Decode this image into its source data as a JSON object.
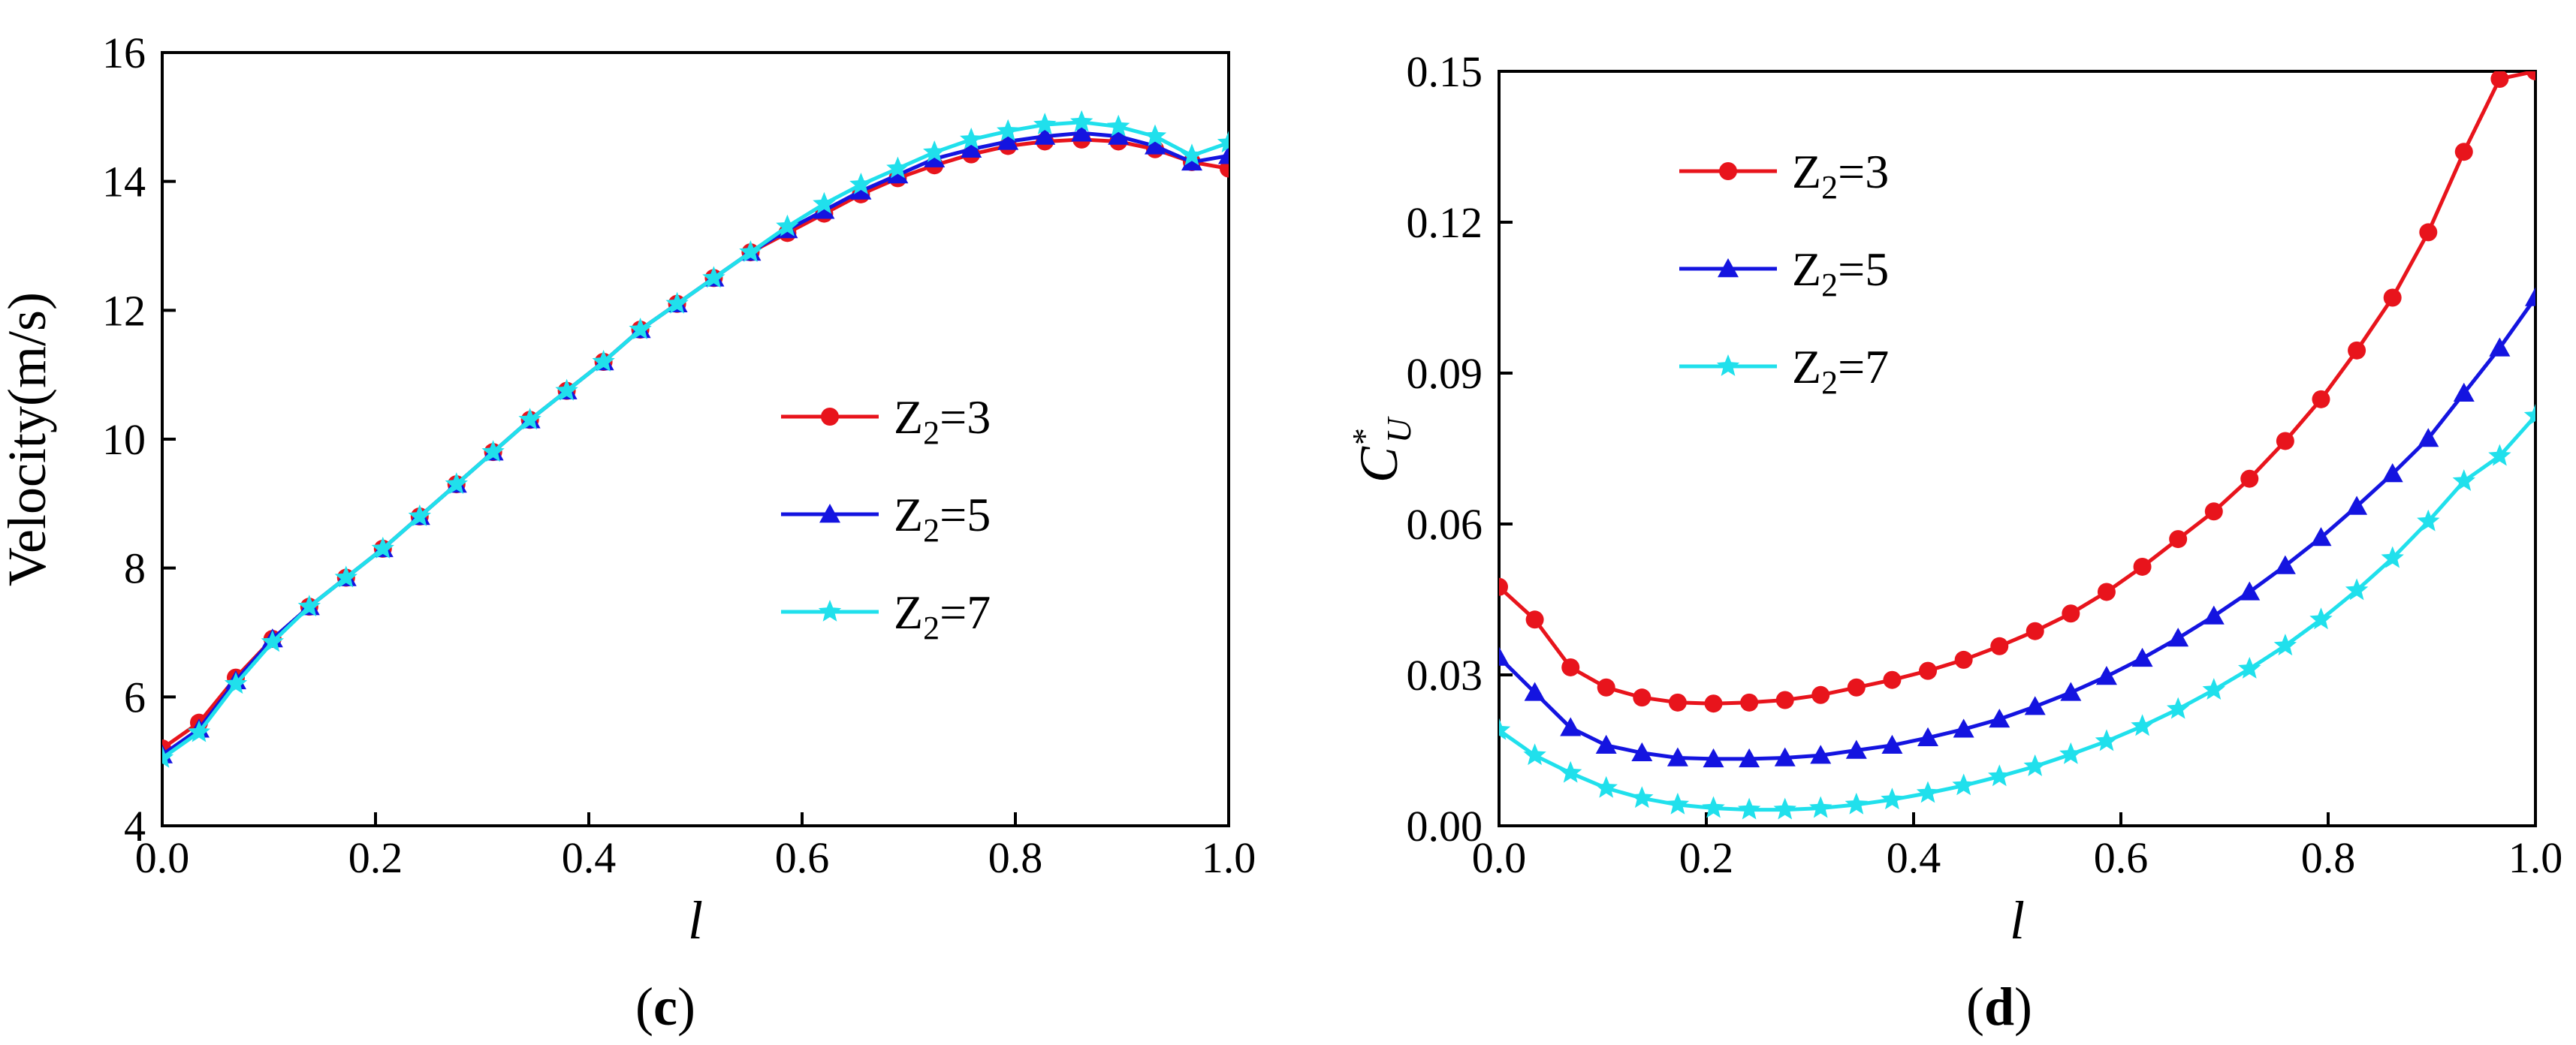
{
  "chart_data": [
    {
      "type": "line",
      "panel_label": "(c)",
      "panel_letter": "c",
      "xlabel": "l",
      "ylabel": "Velocity(m/s)",
      "xlim": [
        0.0,
        1.0
      ],
      "ylim": [
        4,
        16
      ],
      "xticks": [
        "0.0",
        "0.2",
        "0.4",
        "0.6",
        "0.8",
        "1.0"
      ],
      "yticks": [
        "4",
        "6",
        "8",
        "10",
        "12",
        "14",
        "16"
      ],
      "legend_position": "center-right",
      "x": [
        0.0,
        0.0345,
        0.069,
        0.1034,
        0.1379,
        0.1724,
        0.2069,
        0.2414,
        0.2759,
        0.3103,
        0.3448,
        0.3793,
        0.4138,
        0.4483,
        0.4828,
        0.5172,
        0.5517,
        0.5862,
        0.6207,
        0.6552,
        0.6897,
        0.7241,
        0.7586,
        0.7931,
        0.8276,
        0.8621,
        0.8966,
        0.931,
        0.9655,
        1.0
      ],
      "series": [
        {
          "name": "Z2=3",
          "sub_base": "Z",
          "sub": "2",
          "suffix": "=3",
          "color": "#e8141c",
          "marker": "circle",
          "values": [
            5.2,
            5.6,
            6.3,
            6.9,
            7.4,
            7.85,
            8.3,
            8.8,
            9.3,
            9.8,
            10.3,
            10.75,
            11.2,
            11.7,
            12.1,
            12.5,
            12.9,
            13.2,
            13.5,
            13.8,
            14.05,
            14.25,
            14.42,
            14.55,
            14.62,
            14.65,
            14.62,
            14.5,
            14.3,
            14.2
          ]
        },
        {
          "name": "Z2=5",
          "sub_base": "Z",
          "sub": "2",
          "suffix": "=5",
          "color": "#1414e0",
          "marker": "triangle",
          "values": [
            5.1,
            5.5,
            6.25,
            6.9,
            7.4,
            7.85,
            8.3,
            8.8,
            9.3,
            9.8,
            10.3,
            10.75,
            11.2,
            11.7,
            12.1,
            12.5,
            12.9,
            13.25,
            13.55,
            13.85,
            14.1,
            14.35,
            14.5,
            14.62,
            14.7,
            14.75,
            14.7,
            14.55,
            14.3,
            14.4
          ]
        },
        {
          "name": "Z2=7",
          "sub_base": "Z",
          "sub": "2",
          "suffix": "=7",
          "color": "#20e0ec",
          "marker": "star",
          "values": [
            5.05,
            5.45,
            6.2,
            6.85,
            7.4,
            7.85,
            8.3,
            8.8,
            9.3,
            9.8,
            10.3,
            10.75,
            11.2,
            11.7,
            12.1,
            12.5,
            12.9,
            13.3,
            13.65,
            13.95,
            14.2,
            14.45,
            14.65,
            14.78,
            14.88,
            14.92,
            14.85,
            14.7,
            14.4,
            14.6
          ]
        }
      ]
    },
    {
      "type": "line",
      "panel_label": "(d)",
      "panel_letter": "d",
      "xlabel": "l",
      "ylabel": "C*U",
      "ylabel_base": "C",
      "ylabel_sup": "*",
      "ylabel_sub": "U",
      "xlim": [
        0.0,
        1.0
      ],
      "ylim": [
        0.0,
        0.15
      ],
      "xticks": [
        "0.0",
        "0.2",
        "0.4",
        "0.6",
        "0.8",
        "1.0"
      ],
      "yticks": [
        "0.00",
        "0.03",
        "0.06",
        "0.09",
        "0.12",
        "0.15"
      ],
      "legend_position": "top-left",
      "x": [
        0.0,
        0.0345,
        0.069,
        0.1034,
        0.1379,
        0.1724,
        0.2069,
        0.2414,
        0.2759,
        0.3103,
        0.3448,
        0.3793,
        0.4138,
        0.4483,
        0.4828,
        0.5172,
        0.5517,
        0.5862,
        0.6207,
        0.6552,
        0.6897,
        0.7241,
        0.7586,
        0.7931,
        0.8276,
        0.8621,
        0.8966,
        0.931,
        0.9655,
        1.0
      ],
      "series": [
        {
          "name": "Z2=3",
          "sub_base": "Z",
          "sub": "2",
          "suffix": "=3",
          "color": "#e8141c",
          "marker": "circle",
          "values": [
            0.0475,
            0.041,
            0.0315,
            0.0275,
            0.0255,
            0.0245,
            0.0243,
            0.0245,
            0.025,
            0.026,
            0.0275,
            0.029,
            0.0308,
            0.033,
            0.0357,
            0.0387,
            0.0422,
            0.0465,
            0.0515,
            0.057,
            0.0625,
            0.069,
            0.0765,
            0.0848,
            0.0945,
            0.105,
            0.118,
            0.134,
            0.1485,
            0.15
          ]
        },
        {
          "name": "Z2=5",
          "sub_base": "Z",
          "sub": "2",
          "suffix": "=5",
          "color": "#1414e0",
          "marker": "triangle",
          "values": [
            0.0335,
            0.0265,
            0.0195,
            0.016,
            0.0145,
            0.0135,
            0.0133,
            0.0133,
            0.0135,
            0.014,
            0.015,
            0.016,
            0.0175,
            0.0192,
            0.0212,
            0.0237,
            0.0265,
            0.0297,
            0.0333,
            0.0373,
            0.0417,
            0.0465,
            0.0517,
            0.0573,
            0.0635,
            0.07,
            0.077,
            0.086,
            0.095,
            0.105
          ]
        },
        {
          "name": "Z2=7",
          "sub_base": "Z",
          "sub": "2",
          "suffix": "=7",
          "color": "#20e0ec",
          "marker": "star",
          "values": [
            0.019,
            0.014,
            0.0105,
            0.0075,
            0.0055,
            0.0042,
            0.0035,
            0.0032,
            0.0032,
            0.0035,
            0.0042,
            0.0052,
            0.0065,
            0.008,
            0.0098,
            0.0118,
            0.0142,
            0.0168,
            0.0198,
            0.0232,
            0.027,
            0.0312,
            0.0358,
            0.041,
            0.0468,
            0.0532,
            0.0605,
            0.0685,
            0.0735,
            0.0815
          ]
        }
      ]
    }
  ]
}
